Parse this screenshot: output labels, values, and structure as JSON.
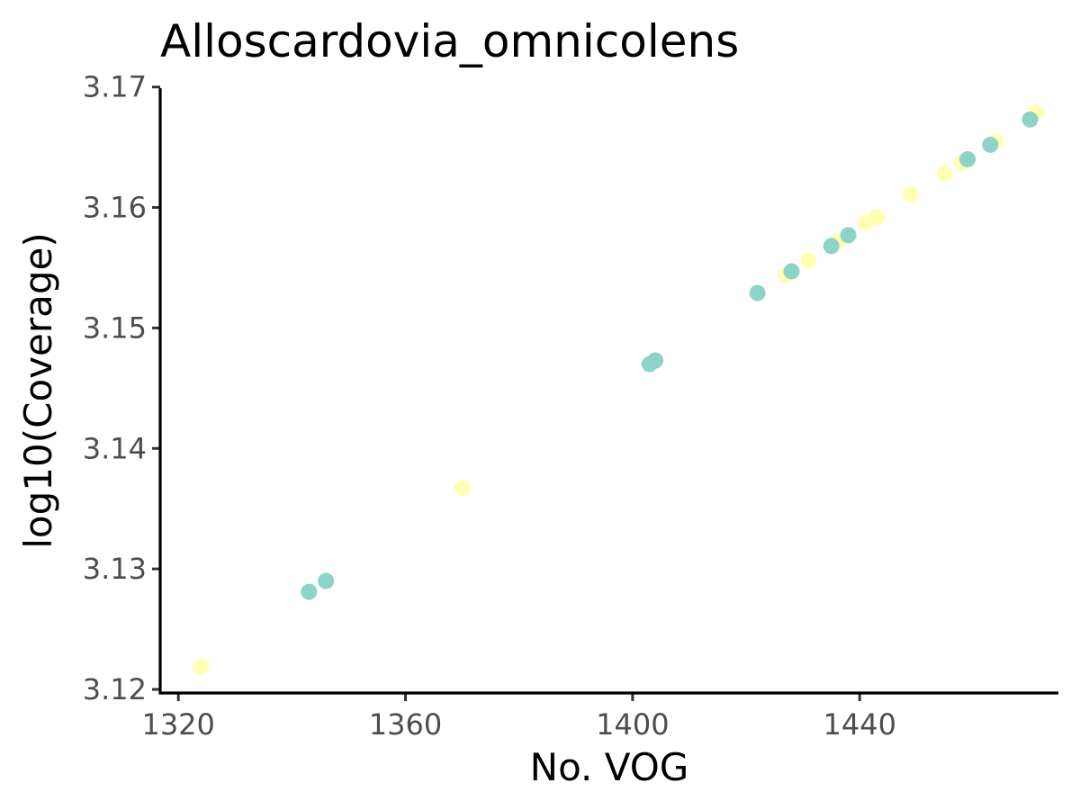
{
  "chart_data": {
    "type": "scatter",
    "title": "Alloscardovia_omnicolens",
    "xlabel": "No. VOG",
    "ylabel": "log10(Coverage)",
    "xlim": [
      1316.8,
      1475
    ],
    "ylim": [
      3.1197,
      3.1699
    ],
    "x_ticks": [
      1320,
      1360,
      1400,
      1440
    ],
    "y_ticks": [
      3.12,
      3.13,
      3.14,
      3.15,
      3.16,
      3.17
    ],
    "x_tick_labels": [
      "1320",
      "1360",
      "1400",
      "1440"
    ],
    "y_tick_labels": [
      "3.12",
      "3.13",
      "3.14",
      "3.15",
      "3.16",
      "3.17"
    ],
    "grid": false,
    "legend": "none",
    "series": [
      {
        "color": "#FFFFB3",
        "points": [
          {
            "x": 1324,
            "y": 3.1219
          },
          {
            "x": 1370,
            "y": 3.1367
          },
          {
            "x": 1427,
            "y": 3.1544
          },
          {
            "x": 1431,
            "y": 3.1556
          },
          {
            "x": 1436,
            "y": 3.1572
          },
          {
            "x": 1441,
            "y": 3.1587
          },
          {
            "x": 1443,
            "y": 3.1592
          },
          {
            "x": 1449,
            "y": 3.1611
          },
          {
            "x": 1455,
            "y": 3.1628
          },
          {
            "x": 1458,
            "y": 3.1637
          },
          {
            "x": 1464,
            "y": 3.1655
          },
          {
            "x": 1471,
            "y": 3.1679
          }
        ]
      },
      {
        "color": "#8DD3C7",
        "points": [
          {
            "x": 1343,
            "y": 3.1281
          },
          {
            "x": 1346,
            "y": 3.129
          },
          {
            "x": 1403,
            "y": 3.147
          },
          {
            "x": 1404,
            "y": 3.1473
          },
          {
            "x": 1422,
            "y": 3.1529
          },
          {
            "x": 1428,
            "y": 3.1547
          },
          {
            "x": 1435,
            "y": 3.1568
          },
          {
            "x": 1438,
            "y": 3.1577
          },
          {
            "x": 1459,
            "y": 3.164
          },
          {
            "x": 1463,
            "y": 3.1652
          },
          {
            "x": 1470,
            "y": 3.1673
          }
        ]
      }
    ]
  }
}
